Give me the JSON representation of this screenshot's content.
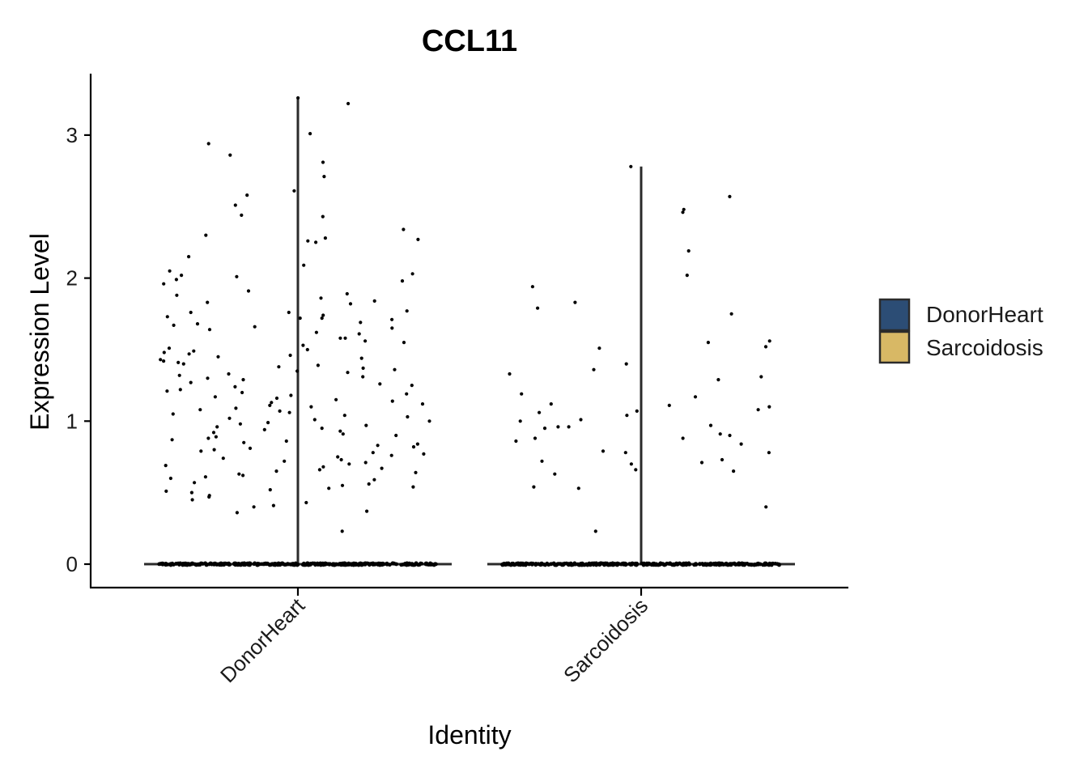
{
  "chart_data": {
    "type": "scatter",
    "subtype": "violin-jitter",
    "title": "CCL11",
    "xlabel": "Identity",
    "ylabel": "Expression Level",
    "categories": [
      "DonorHeart",
      "Sarcoidosis"
    ],
    "ylim": [
      -0.16,
      3.43
    ],
    "yticks": [
      0,
      1,
      2,
      3
    ],
    "grid": false,
    "legend": {
      "position": "right",
      "entries": [
        {
          "name": "DonorHeart",
          "color": "#2c4d75"
        },
        {
          "name": "Sarcoidosis",
          "color": "#d8b865"
        }
      ]
    },
    "series": [
      {
        "name": "DonorHeart",
        "color": "#2c4d75",
        "max": 3.26,
        "zero_count": "many",
        "nonzero_values": [
          3.26,
          3.22,
          3.01,
          2.94,
          2.86,
          2.81,
          2.71,
          2.61,
          2.58,
          2.51,
          2.44,
          2.43,
          2.34,
          2.3,
          2.28,
          2.27,
          2.26,
          2.25,
          2.15,
          2.09,
          2.05,
          2.03,
          2.02,
          2.01,
          1.99,
          1.98,
          1.96,
          1.91,
          1.89,
          1.88,
          1.86,
          1.84,
          1.83,
          1.82,
          1.77,
          1.76,
          1.76,
          1.74,
          1.73,
          1.72,
          1.72,
          1.71,
          1.69,
          1.68,
          1.67,
          1.66,
          1.65,
          1.64,
          1.62,
          1.61,
          1.58,
          1.58,
          1.56,
          1.55,
          1.53,
          1.51,
          1.5,
          1.49,
          1.48,
          1.47,
          1.46,
          1.45,
          1.44,
          1.43,
          1.42,
          1.41,
          1.4,
          1.39,
          1.38,
          1.37,
          1.36,
          1.35,
          1.34,
          1.33,
          1.32,
          1.31,
          1.3,
          1.29,
          1.27,
          1.26,
          1.25,
          1.24,
          1.22,
          1.21,
          1.2,
          1.19,
          1.18,
          1.17,
          1.16,
          1.15,
          1.14,
          1.13,
          1.12,
          1.11,
          1.1,
          1.09,
          1.08,
          1.07,
          1.06,
          1.05,
          1.04,
          1.03,
          1.02,
          1.01,
          1.0,
          0.99,
          0.98,
          0.97,
          0.96,
          0.95,
          0.94,
          0.93,
          0.92,
          0.91,
          0.9,
          0.89,
          0.88,
          0.87,
          0.86,
          0.85,
          0.84,
          0.83,
          0.82,
          0.81,
          0.8,
          0.79,
          0.78,
          0.77,
          0.76,
          0.75,
          0.74,
          0.73,
          0.72,
          0.71,
          0.7,
          0.69,
          0.68,
          0.67,
          0.66,
          0.65,
          0.64,
          0.63,
          0.62,
          0.61,
          0.6,
          0.59,
          0.57,
          0.56,
          0.55,
          0.54,
          0.53,
          0.52,
          0.51,
          0.5,
          0.48,
          0.47,
          0.45,
          0.43,
          0.41,
          0.4,
          0.37,
          0.36,
          0.23
        ]
      },
      {
        "name": "Sarcoidosis",
        "color": "#d8b865",
        "max": 2.78,
        "zero_count": "many",
        "nonzero_values": [
          2.78,
          2.57,
          2.48,
          2.46,
          2.19,
          2.02,
          1.94,
          1.83,
          1.79,
          1.75,
          1.56,
          1.55,
          1.52,
          1.51,
          1.4,
          1.36,
          1.33,
          1.31,
          1.29,
          1.19,
          1.17,
          1.12,
          1.11,
          1.1,
          1.08,
          1.07,
          1.06,
          1.04,
          1.01,
          1.0,
          0.97,
          0.96,
          0.96,
          0.95,
          0.91,
          0.9,
          0.88,
          0.88,
          0.86,
          0.84,
          0.79,
          0.78,
          0.78,
          0.73,
          0.72,
          0.71,
          0.7,
          0.66,
          0.65,
          0.63,
          0.54,
          0.53,
          0.4,
          0.23
        ]
      }
    ]
  }
}
